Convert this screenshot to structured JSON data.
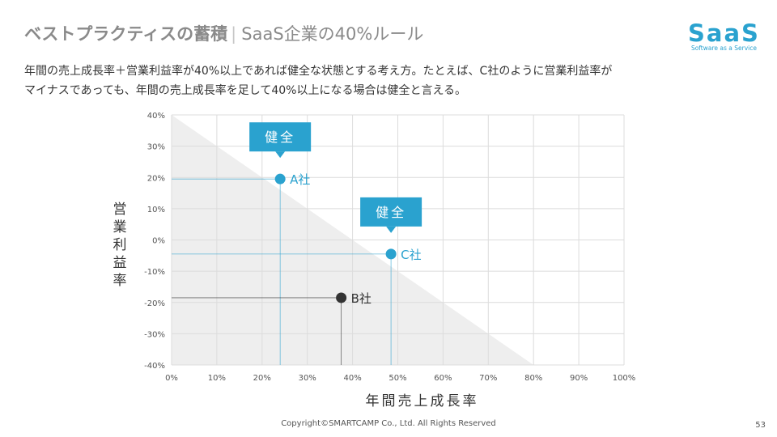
{
  "header": {
    "title": "ベストプラクティスの蓄積",
    "separator": "|",
    "subtitle": "SaaS企業の40%ルール"
  },
  "logo": {
    "text": "SaaS",
    "tagline": "Software as a Service"
  },
  "description": {
    "line1": "年間の売上成長率＋営業利益率が40%以上であれば健全な状態とする考え方。たとえば、C社のように営業利益率が",
    "line2": "マイナスであっても、年間の売上成長率を足して40%以上になる場合は健全と言える。"
  },
  "chart_data": {
    "type": "scatter",
    "xlabel": "年間売上成長率",
    "ylabel": "営業利益率",
    "xlim": [
      0,
      100
    ],
    "ylim": [
      -40,
      40
    ],
    "x_ticks": [
      "0%",
      "10%",
      "20%",
      "30%",
      "40%",
      "50%",
      "60%",
      "70%",
      "80%",
      "90%",
      "100%"
    ],
    "y_ticks": [
      "40%",
      "30%",
      "20%",
      "10%",
      "0%",
      "-10%",
      "-20%",
      "-30%",
      "-40%"
    ],
    "grid": true,
    "threshold_line": {
      "x_plus_y": 40
    },
    "points": [
      {
        "label": "A社",
        "x": 24,
        "y": 19.5,
        "color": "#2aa2cf",
        "callout": "健全"
      },
      {
        "label": "B社",
        "x": 37.5,
        "y": -18.5,
        "color": "#333333",
        "callout": ""
      },
      {
        "label": "C社",
        "x": 48.5,
        "y": -4.5,
        "color": "#2aa2cf",
        "callout": "健全"
      }
    ],
    "colors": {
      "healthy": "#2aa2cf",
      "unhealthy": "#333333",
      "shade": "#eeeeee",
      "grid": "#dcdcdc"
    }
  },
  "footer": {
    "copyright": "Copyright©SMARTCAMP Co., Ltd. All Rights Reserved",
    "page": "53"
  }
}
